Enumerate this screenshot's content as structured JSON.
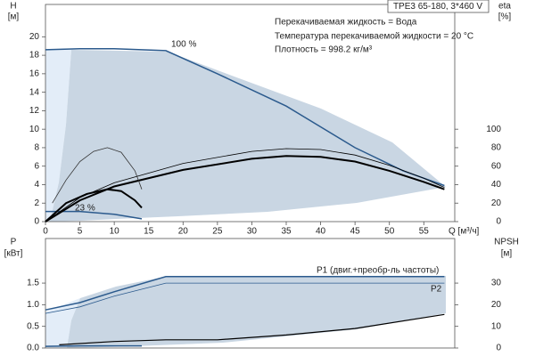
{
  "chart_data": [
    {
      "type": "line",
      "title": "TPE3 65-180, 3*460 V",
      "annotations": [
        "Перекачиваемая жидкость = Вода",
        "Температура перекачиваемой жидкости = 20 °C",
        "Плотность = 998.2 кг/м³",
        "100 %",
        "23 %"
      ],
      "ylabel": "H",
      "yunit": "[м]",
      "y2label": "eta",
      "y2unit": "[%]",
      "xlabel": "Q [м³/ч]",
      "xlim": [
        0,
        59.5
      ],
      "xticks": [
        0,
        5,
        10,
        15,
        20,
        25,
        30,
        35,
        40,
        45,
        50,
        55
      ],
      "ylim": [
        0,
        23.5
      ],
      "yticks": [
        0,
        2,
        4,
        6,
        8,
        10,
        12,
        14,
        16,
        18,
        20
      ],
      "y2lim": [
        0,
        235
      ],
      "y2ticks": [
        0,
        20,
        40,
        60,
        80,
        100
      ],
      "series": [
        {
          "color": "#2b5a8d",
          "width": 1.5,
          "x": [
            0,
            5,
            10,
            17.5,
            25,
            35,
            45,
            52,
            58
          ],
          "values": [
            18.6,
            18.7,
            18.7,
            18.5,
            16,
            12.5,
            8,
            5.5,
            3.9
          ]
        },
        {
          "color": "#2b5a8d",
          "width": 1.5,
          "x": [
            0,
            5,
            10,
            14
          ],
          "values": [
            1.1,
            1.1,
            0.8,
            0.3
          ]
        },
        {
          "color": "#000000",
          "width": 0.8,
          "axis": "y2",
          "x": [
            0,
            5,
            10,
            20,
            30,
            35,
            40,
            45,
            50,
            55,
            58
          ],
          "values": [
            0,
            26,
            42,
            63,
            76,
            79,
            78,
            72,
            61,
            47,
            37
          ]
        },
        {
          "color": "#000000",
          "width": 2,
          "axis": "y2",
          "x": [
            0,
            5,
            10,
            20,
            30,
            35,
            40,
            45,
            50,
            55,
            58
          ],
          "values": [
            0,
            23,
            38,
            56,
            68,
            71,
            70,
            65,
            55,
            43,
            35
          ]
        },
        {
          "color": "#333333",
          "width": 0.8,
          "axis": "y2",
          "x": [
            1,
            3,
            5,
            7,
            9,
            11,
            13,
            14
          ],
          "values": [
            20,
            45,
            65,
            76,
            80,
            75,
            55,
            35
          ]
        },
        {
          "color": "#000000",
          "width": 2,
          "axis": "y2",
          "x": [
            0,
            3,
            6,
            9,
            11,
            13,
            14
          ],
          "values": [
            0,
            20,
            30,
            35,
            33,
            23,
            15
          ]
        }
      ]
    },
    {
      "type": "line",
      "annotations": [
        "P1 (двиг.+преобр-ль частоты)",
        "P2"
      ],
      "ylabel": "P",
      "yunit": "[кВт]",
      "y2label": "NPSH",
      "y2unit": "[м]",
      "xlim": [
        0,
        59.5
      ],
      "ylim": [
        0,
        2.53
      ],
      "yticks": [
        {
          "value": 0,
          "label": "0.0"
        },
        {
          "value": 0.5,
          "label": "0.5"
        },
        {
          "value": 1,
          "label": "1.0"
        },
        {
          "value": 1.5,
          "label": "1.5"
        }
      ],
      "y2lim": [
        0,
        50.6
      ],
      "y2ticks": [
        0,
        10,
        20,
        30
      ],
      "series": [
        {
          "color": "#2b5a8d",
          "width": 1.5,
          "x": [
            0,
            5,
            10,
            17.5,
            25,
            58
          ],
          "values": [
            0.88,
            1.05,
            1.3,
            1.65,
            1.65,
            1.65
          ]
        },
        {
          "color": "#2b5a8d",
          "width": 0.8,
          "x": [
            0,
            5,
            10,
            17.5,
            25,
            58
          ],
          "values": [
            0.8,
            0.95,
            1.2,
            1.5,
            1.5,
            1.5
          ]
        },
        {
          "color": "#2b5a8d",
          "width": 1.5,
          "x": [
            0,
            5,
            10,
            14
          ],
          "values": [
            0.04,
            0.05,
            0.05,
            0.05
          ]
        },
        {
          "color": "#000000",
          "width": 1.2,
          "axis": "y2",
          "x": [
            2,
            10,
            17.5,
            25,
            35,
            45,
            58
          ],
          "values": [
            1.5,
            3,
            3.8,
            3.8,
            6,
            9,
            15.5
          ]
        }
      ]
    }
  ]
}
